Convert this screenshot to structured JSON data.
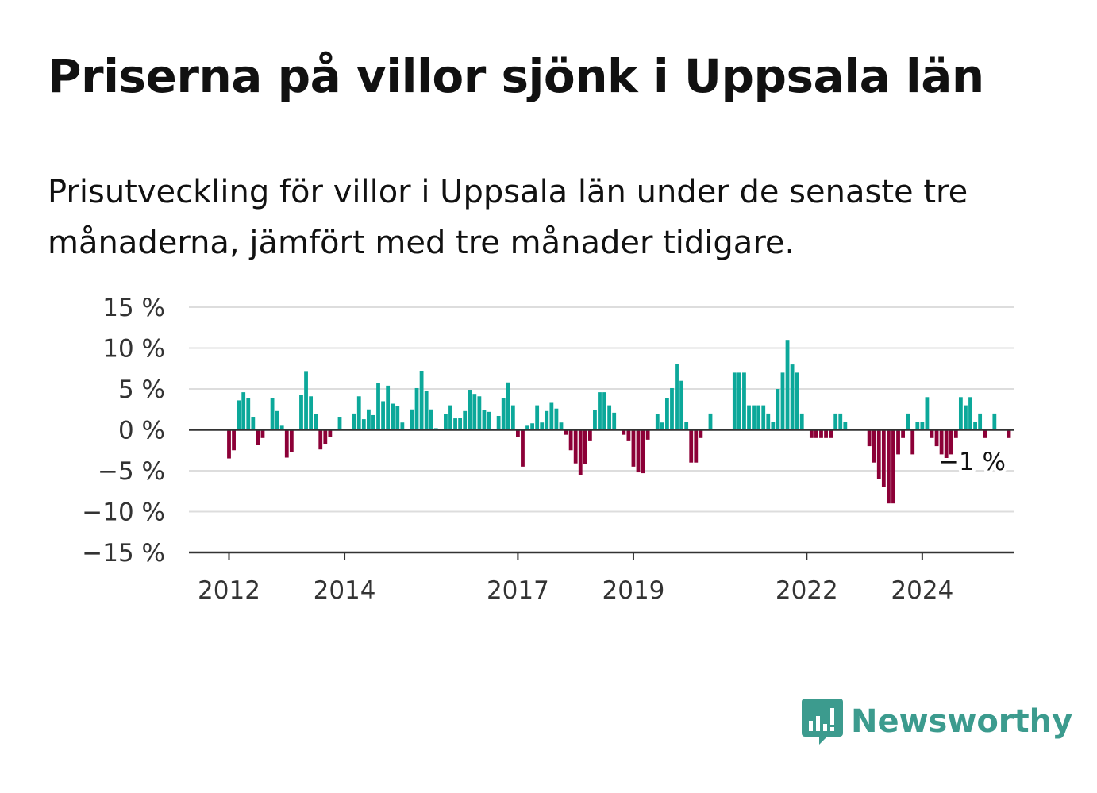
{
  "title": "Priserna på villor sjönk i Uppsala län",
  "subtitle": "Prisutveckling för villor i Uppsala län under de senaste tre månaderna, jämfört med tre månader tidigare.",
  "brand": {
    "name": "Newsworthy",
    "icon": "newsworthy-logo-icon",
    "color": "#3c9b8e"
  },
  "colors": {
    "positive": "#0ca89a",
    "negative": "#8c0037",
    "grid": "#dddddd",
    "axis": "#333333"
  },
  "chart_data": {
    "type": "bar",
    "start_month": "2012-01",
    "end_label": "−1 %",
    "ylim": [
      -15,
      15
    ],
    "yticks": [
      15,
      10,
      5,
      0,
      -5,
      -10,
      -15
    ],
    "ytick_labels": [
      "15 %",
      "10 %",
      "5 %",
      "0 %",
      "−5 %",
      "−10 %",
      "−15 %"
    ],
    "xtick_labels": [
      "2012",
      "2014",
      "2017",
      "2019",
      "2022",
      "2024"
    ],
    "xtick_positions": [
      "2012-01",
      "2014-01",
      "2017-01",
      "2019-01",
      "2022-01",
      "2024-01"
    ],
    "grid": true,
    "values": [
      -3.5,
      -2.5,
      3.6,
      4.6,
      3.9,
      1.6,
      -1.8,
      -1,
      0,
      3.9,
      2.3,
      0.5,
      -3.4,
      -2.7,
      0,
      4.3,
      7.1,
      4.1,
      1.9,
      -2.4,
      -1.7,
      -0.9,
      0,
      1.6,
      0,
      0,
      2,
      4.1,
      1.3,
      2.5,
      1.8,
      5.7,
      3.5,
      5.4,
      3.2,
      2.9,
      0.9,
      0,
      2.5,
      5.1,
      7.2,
      4.8,
      2.5,
      0.2,
      0,
      1.9,
      3,
      1.4,
      1.5,
      2.3,
      4.9,
      4.4,
      4.1,
      2.4,
      2.2,
      0,
      1.7,
      3.9,
      5.8,
      3,
      -0.9,
      -4.5,
      0.5,
      0.8,
      3,
      0.9,
      2.3,
      3.3,
      2.6,
      0.9,
      -0.6,
      -2.5,
      -4.1,
      -5.5,
      -4.2,
      -1.3,
      2.4,
      4.6,
      4.6,
      3,
      2.1,
      0,
      -0.6,
      -1.3,
      -4.5,
      -5.2,
      -5.3,
      -1.2,
      0,
      1.9,
      0.9,
      3.9,
      5.1,
      8.1,
      6,
      1,
      -4,
      -4,
      -1,
      0,
      2,
      0,
      0,
      0,
      0,
      7,
      7,
      7,
      3,
      3,
      3,
      3,
      2,
      1,
      5,
      7,
      11,
      8,
      7,
      2,
      0,
      -1,
      -1,
      -1,
      -1,
      -1,
      2,
      2,
      1,
      0,
      0,
      0,
      0,
      -2,
      -4,
      -6,
      -7,
      -9,
      -9,
      -3,
      -1,
      2,
      -3,
      1,
      1,
      4,
      -1,
      -2,
      -3,
      -4,
      -3,
      -1,
      4,
      3,
      4,
      1,
      2,
      -1,
      0,
      2,
      0,
      0,
      -1,
      0,
      0,
      0
    ]
  }
}
